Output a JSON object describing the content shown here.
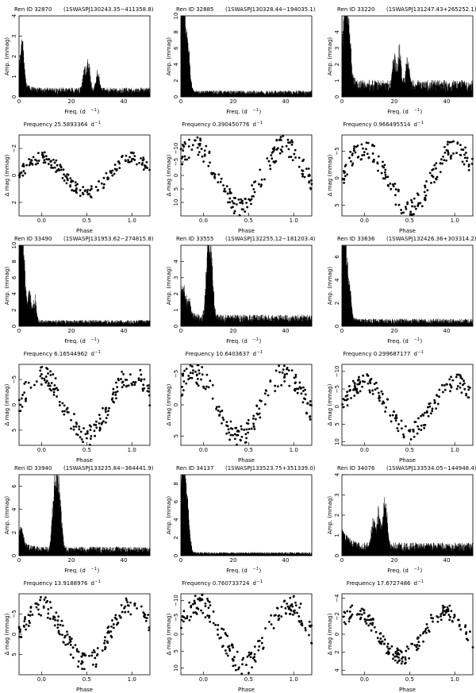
{
  "colors": {
    "ink": "#000000",
    "background": "#ffffff"
  },
  "chart_data": [
    {
      "star": "Ren ID 32870",
      "id": "(1SWASPJ130243.35−411358.8)",
      "frequency": "Frequency 25.5893364",
      "amp_ylim": [
        0,
        4
      ],
      "amp_yticks": [
        "0",
        "1",
        "2",
        "3",
        "4"
      ],
      "amp_peaks": [
        [
          1,
          1.8
        ],
        [
          1.5,
          1.2
        ],
        [
          25,
          1.2
        ],
        [
          26.5,
          1.5
        ],
        [
          30,
          1.0
        ]
      ],
      "amp_noise": 0.35,
      "phase_ylim": [
        3,
        -3
      ],
      "phase_yticks": [
        "−2",
        "0",
        "2"
      ],
      "phase_amp": 1.3,
      "phase_min": 0.5
    },
    {
      "star": "Ren ID 32885",
      "id": "(1SWASPJ130328.44−194035.1)",
      "frequency": "Frequency 0.390450776",
      "amp_ylim": [
        0,
        10
      ],
      "amp_yticks": [
        "0",
        "2",
        "4",
        "6",
        "8",
        "10"
      ],
      "amp_peaks": [
        [
          0.5,
          9.5
        ],
        [
          1,
          8.0
        ],
        [
          2,
          6.0
        ],
        [
          3,
          4.0
        ]
      ],
      "amp_noise": 0.6,
      "phase_ylim": [
        15,
        -15
      ],
      "phase_yticks": [
        "−10",
        "−5",
        "0",
        "5",
        "10"
      ],
      "phase_amp": 11,
      "phase_min": 0.4
    },
    {
      "star": "Ren ID 33220",
      "id": "(1SWASPJ131247.43+265252.1)",
      "frequency": "Frequency 0.966495514",
      "amp_ylim": [
        0,
        5
      ],
      "amp_yticks": [
        "0",
        "1",
        "2",
        "3",
        "4"
      ],
      "amp_peaks": [
        [
          1,
          4.5
        ],
        [
          2,
          3.2
        ],
        [
          3,
          2.5
        ],
        [
          20,
          2.0
        ],
        [
          22,
          2.5
        ],
        [
          25,
          1.8
        ]
      ],
      "amp_noise": 0.8,
      "phase_ylim": [
        7,
        -8
      ],
      "phase_yticks": [
        "−5",
        "0",
        "5"
      ],
      "phase_amp": 5.5,
      "phase_min": 0.5
    },
    {
      "star": "Ren ID 33490",
      "id": "(1SWASPJ131953.62−274815.8)",
      "frequency": "Frequency 6.16544962",
      "amp_ylim": [
        0,
        10
      ],
      "amp_yticks": [
        "0",
        "2",
        "4",
        "6",
        "8",
        "10"
      ],
      "amp_peaks": [
        [
          0.5,
          9.2
        ],
        [
          1,
          8.5
        ],
        [
          2,
          6.0
        ],
        [
          4,
          4.0
        ],
        [
          6,
          3.2
        ]
      ],
      "amp_noise": 0.6,
      "phase_ylim": [
        8,
        -8
      ],
      "phase_yticks": [
        "−5",
        "0",
        "5"
      ],
      "phase_amp": 6,
      "phase_min": 0.5
    },
    {
      "star": "Ren ID 33555",
      "id": "(1SWASPJ132255.12−181203.4)",
      "frequency": "Frequency 10.6403637",
      "amp_ylim": [
        0,
        5
      ],
      "amp_yticks": [
        "0",
        "1",
        "2",
        "3",
        "4"
      ],
      "amp_peaks": [
        [
          1,
          1.8
        ],
        [
          3,
          1.3
        ],
        [
          10,
          3.5
        ],
        [
          11,
          4.2
        ],
        [
          12,
          2.8
        ]
      ],
      "amp_noise": 0.55,
      "phase_ylim": [
        6.5,
        -6.5
      ],
      "phase_yticks": [
        "−5",
        "0",
        "5"
      ],
      "phase_amp": 5,
      "phase_min": 0.4
    },
    {
      "star": "Ren ID 33636",
      "id": "(1SWASPJ132426.36+303314.2)",
      "frequency": "Frequency 0.299687177",
      "amp_ylim": [
        0,
        7
      ],
      "amp_yticks": [
        "0",
        "2",
        "4",
        "6"
      ],
      "amp_peaks": [
        [
          0.5,
          6.0
        ],
        [
          1,
          5.0
        ],
        [
          2,
          3.5
        ],
        [
          3,
          2.5
        ]
      ],
      "amp_noise": 0.5,
      "phase_ylim": [
        11,
        -12
      ],
      "phase_yticks": [
        "−10",
        "−5",
        "0",
        "5",
        "10"
      ],
      "phase_amp": 7,
      "phase_min": 0.5
    },
    {
      "star": "Ren ID 33940",
      "id": "(1SWASPJ133235.84−364441.9)",
      "frequency": "Frequency 13.9188976",
      "amp_ylim": [
        0,
        7
      ],
      "amp_yticks": [
        "0",
        "2",
        "4",
        "6"
      ],
      "amp_peaks": [
        [
          14,
          6.5
        ],
        [
          15,
          5.5
        ],
        [
          13,
          3.5
        ],
        [
          16,
          3.2
        ],
        [
          1,
          1.3
        ]
      ],
      "amp_noise": 0.6,
      "phase_ylim": [
        10,
        -10
      ],
      "phase_yticks": [
        "−5",
        "0",
        "5"
      ],
      "phase_amp": 7,
      "phase_min": 0.5
    },
    {
      "star": "Ren ID 34137",
      "id": "(1SWASPJ133523.75+351339.0)",
      "frequency": "Frequency 0.760733724",
      "amp_ylim": [
        0,
        9
      ],
      "amp_yticks": [
        "0",
        "2",
        "4",
        "6",
        "8"
      ],
      "amp_peaks": [
        [
          0.5,
          8.0
        ],
        [
          1,
          7.5
        ],
        [
          2,
          5.5
        ],
        [
          3,
          3.2
        ]
      ],
      "amp_noise": 0.3,
      "phase_ylim": [
        12,
        -12
      ],
      "phase_yticks": [
        "−10",
        "−5",
        "0",
        "5",
        "10"
      ],
      "phase_amp": 9,
      "phase_min": 0.45
    },
    {
      "star": "Ren ID 34076",
      "id": "(1SWASPJ133534.05−144948.4)",
      "frequency": "Frequency 17.6727486",
      "amp_ylim": [
        0,
        4
      ],
      "amp_yticks": [
        "0",
        "1",
        "2",
        "3",
        "4"
      ],
      "amp_peaks": [
        [
          12,
          1.8
        ],
        [
          14,
          2.0
        ],
        [
          16,
          2.0
        ],
        [
          17,
          1.6
        ]
      ],
      "amp_noise": 0.5,
      "phase_ylim": [
        4.5,
        -4.5
      ],
      "phase_yticks": [
        "−4",
        "−2",
        "0",
        "2",
        "4"
      ],
      "phase_amp": 2.5,
      "phase_min": 0.4
    }
  ],
  "common": {
    "amp_xlim": [
      0,
      50
    ],
    "amp_xticks": [
      "0",
      "20",
      "40"
    ],
    "amp_xvals": [
      0,
      20,
      40
    ],
    "amp_ylabel": "Amp. (mmag)",
    "amp_xlabel": "Freq. (d",
    "amp_xlabel_sup": "−1",
    "amp_xlabel_end": ")",
    "freq_unit": "d",
    "freq_unit_sup": "−1",
    "phase_xlim": [
      -0.25,
      1.2
    ],
    "phase_xticks": [
      "0.0",
      "0.5",
      "1.0"
    ],
    "phase_xvals": [
      0,
      0.5,
      1.0
    ],
    "phase_ylabel": "Δ mag (mmag)",
    "phase_xlabel": "Phase"
  }
}
